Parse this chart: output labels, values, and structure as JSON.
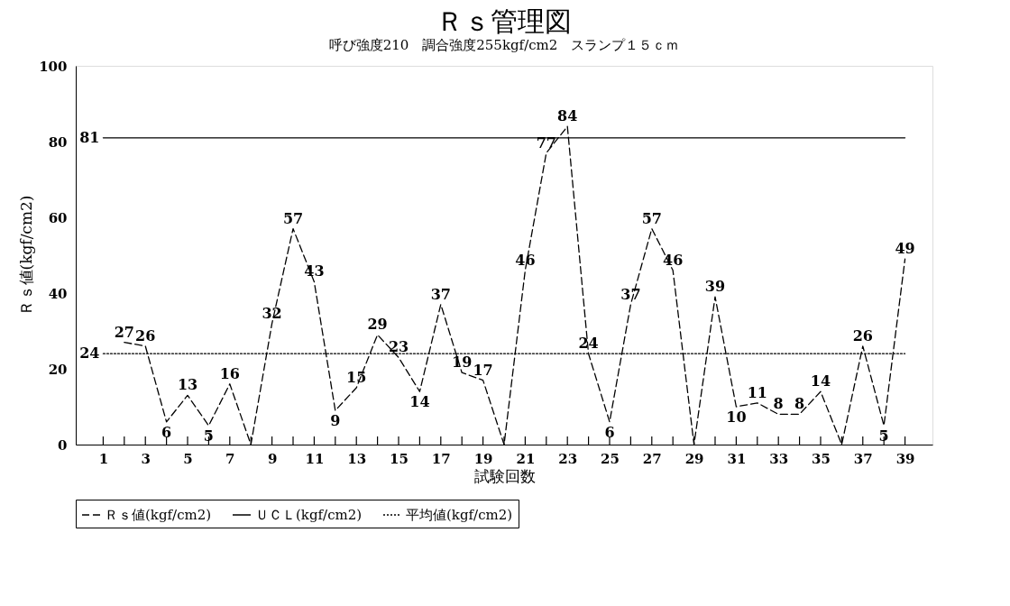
{
  "chart_data": {
    "type": "line",
    "title": "Ｒｓ管理図",
    "subtitle": "呼び強度210　調合強度255kgf/cm2　スランプ１５ｃｍ",
    "xlabel": "試験回数",
    "ylabel": "Ｒｓ値(kgf/cm2)",
    "x": [
      1,
      2,
      3,
      4,
      5,
      6,
      7,
      8,
      9,
      10,
      11,
      12,
      13,
      14,
      15,
      16,
      17,
      18,
      19,
      20,
      21,
      22,
      23,
      24,
      25,
      26,
      27,
      28,
      29,
      30,
      31,
      32,
      33,
      34,
      35,
      36,
      37,
      38,
      39
    ],
    "xlim": [
      -0.3,
      40.3
    ],
    "xticks": [
      1,
      {
        "value": 2,
        "label": null
      },
      3,
      {
        "value": 4,
        "label": null
      },
      5,
      {
        "value": 6,
        "label": null
      },
      7,
      {
        "value": 8,
        "label": null
      },
      9,
      {
        "value": 10,
        "label": null
      },
      11,
      {
        "value": 12,
        "label": null
      },
      13,
      {
        "value": 14,
        "label": null
      },
      15,
      {
        "value": 16,
        "label": null
      },
      17,
      {
        "value": 18,
        "label": null
      },
      19,
      {
        "value": 20,
        "label": null
      },
      21,
      {
        "value": 22,
        "label": null
      },
      23,
      {
        "value": 24,
        "label": null
      },
      25,
      {
        "value": 26,
        "label": null
      },
      27,
      {
        "value": 28,
        "label": null
      },
      29,
      {
        "value": 30,
        "label": null
      },
      31,
      {
        "value": 32,
        "label": null
      },
      33,
      {
        "value": 34,
        "label": null
      },
      35,
      {
        "value": 36,
        "label": null
      },
      37,
      {
        "value": 38,
        "label": null
      },
      39
    ],
    "ylim": [
      0,
      100
    ],
    "yticks": [
      0,
      20,
      40,
      60,
      80,
      100
    ],
    "grid": false,
    "legend": "bottom",
    "marker": "none",
    "series": [
      {
        "name": "Ｒｓ値(kgf/cm2)",
        "color": "#000000",
        "line_style": "dashed",
        "values": [
          null,
          27,
          26,
          6,
          13,
          5,
          16,
          0,
          32,
          57,
          43,
          9,
          15,
          29,
          23,
          14,
          37,
          19,
          17,
          0,
          46,
          77,
          84,
          24,
          6,
          37,
          57,
          46,
          0,
          39,
          10,
          11,
          8,
          8,
          14,
          0,
          26,
          5,
          49
        ],
        "value_labels": [
          null,
          "27",
          "26",
          "6",
          "13",
          "5",
          "16",
          null,
          "32",
          "57",
          "43",
          "9",
          "15",
          "29",
          "23",
          "14",
          "37",
          "19",
          "17",
          null,
          "46",
          "77",
          "84",
          "24",
          "6",
          "37",
          "57",
          "46",
          null,
          "39",
          "10",
          "11",
          "8",
          "8",
          "14",
          null,
          "26",
          "5",
          "49"
        ]
      },
      {
        "name": "ＵＣＬ(kgf/cm2)",
        "color": "#000000",
        "line_style": "solid",
        "values": [
          81,
          81,
          81,
          81,
          81,
          81,
          81,
          81,
          81,
          81,
          81,
          81,
          81,
          81,
          81,
          81,
          81,
          81,
          81,
          81,
          81,
          81,
          81,
          81,
          81,
          81,
          81,
          81,
          81,
          81,
          81,
          81,
          81,
          81,
          81,
          81,
          81,
          81,
          81
        ],
        "value_labels": [
          "81",
          null,
          null,
          null,
          null,
          null,
          null,
          null,
          null,
          null,
          null,
          null,
          null,
          null,
          null,
          null,
          null,
          null,
          null,
          null,
          null,
          null,
          null,
          null,
          null,
          null,
          null,
          null,
          null,
          null,
          null,
          null,
          null,
          null,
          null,
          null,
          null,
          null,
          null
        ]
      },
      {
        "name": "平均値(kgf/cm2)",
        "color": "#000000",
        "line_style": "dotted",
        "values": [
          24,
          24,
          24,
          24,
          24,
          24,
          24,
          24,
          24,
          24,
          24,
          24,
          24,
          24,
          24,
          24,
          24,
          24,
          24,
          24,
          24,
          24,
          24,
          24,
          24,
          24,
          24,
          24,
          24,
          24,
          24,
          24,
          24,
          24,
          24,
          24,
          24,
          24,
          24
        ],
        "value_labels": [
          "24",
          null,
          null,
          null,
          null,
          null,
          null,
          null,
          null,
          null,
          null,
          null,
          null,
          null,
          null,
          null,
          null,
          null,
          null,
          null,
          null,
          null,
          null,
          null,
          null,
          null,
          null,
          null,
          null,
          null,
          null,
          null,
          null,
          null,
          null,
          null,
          null,
          null,
          null
        ]
      }
    ]
  }
}
